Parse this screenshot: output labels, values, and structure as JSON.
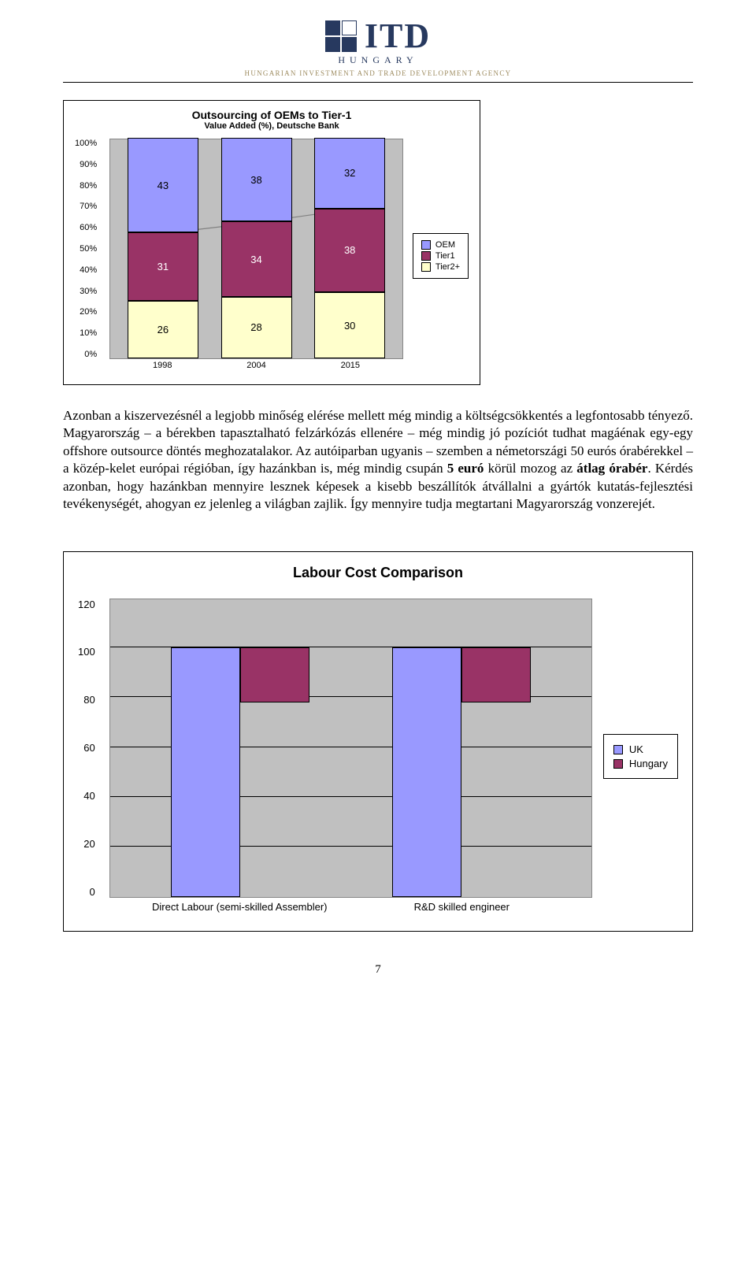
{
  "header": {
    "brand": "ITD",
    "country": "HUNGARY",
    "tagline": "HUNGARIAN INVESTMENT AND TRADE DEVELOPMENT AGENCY"
  },
  "chart1": {
    "type": "stacked-bar",
    "title": "Outsourcing of OEMs to Tier-1",
    "subtitle": "Value Added (%), Deutsche Bank",
    "categories": [
      "1998",
      "2004",
      "2015"
    ],
    "series": [
      {
        "name": "Tier2+",
        "color": "#ffffcc",
        "values": [
          26,
          28,
          30
        ]
      },
      {
        "name": "Tier1",
        "color": "#993366",
        "values": [
          31,
          34,
          38
        ]
      },
      {
        "name": "OEM",
        "color": "#9999ff",
        "values": [
          43,
          38,
          32
        ]
      }
    ],
    "legend_order": [
      "OEM",
      "Tier1",
      "Tier2+"
    ],
    "ylim": [
      0,
      100
    ],
    "ytick_step": 10,
    "ylabels": [
      "100%",
      "90%",
      "80%",
      "70%",
      "60%",
      "50%",
      "40%",
      "30%",
      "20%",
      "10%",
      "0%"
    ],
    "plot_bg": "#c0c0c0",
    "bar_positions_pct": [
      18,
      50,
      82
    ],
    "label_fontsize": 11,
    "title_fontsize": 14,
    "line_color": "#808080"
  },
  "paragraph": {
    "text_pre": "Azonban a kiszervezésnél a legjobb minőség elérése mellett még mindig a költségcsökkentés a legfontosabb tényező. Magyarország – a bérekben tapasztalható felzárkózás ellenére – még mindig jó pozíciót tudhat magáénak egy-egy offshore outsource döntés meghozatalakor. Az autóiparban ugyanis – szemben a németországi 50 eurós órabérekkel – a közép-kelet európai régióban, így hazánkban is, még mindig csupán ",
    "bold1": "5 euró",
    "text_mid": " körül mozog az ",
    "bold2": "átlag órabér",
    "text_post": ". Kérdés azonban, hogy hazánkban mennyire lesznek képesek a kisebb beszállítók átvállalni a gyártók kutatás-fejlesztési tevékenységét, ahogyan ez jelenleg a világban zajlik. Így mennyire tudja megtartani Magyarország vonzerejét."
  },
  "chart2": {
    "type": "grouped-bar",
    "title": "Labour Cost Comparison",
    "categories": [
      "Direct Labour (semi-skilled Assembler)",
      "R&D skilled engineer"
    ],
    "series": [
      {
        "name": "UK",
        "color": "#9999ff",
        "values": [
          100,
          100
        ]
      },
      {
        "name": "Hungary",
        "color": "#993366",
        "values": [
          22,
          22
        ]
      }
    ],
    "ylim": [
      0,
      120
    ],
    "ytick_step": 20,
    "ylabels": [
      "120",
      "100",
      "80",
      "60",
      "40",
      "20",
      "0"
    ],
    "plot_bg": "#c0c0c0",
    "grid_color": "#000000",
    "group_positions_pct": [
      27,
      73
    ],
    "label_fontsize": 13,
    "title_fontsize": 18
  },
  "page_number": "7"
}
